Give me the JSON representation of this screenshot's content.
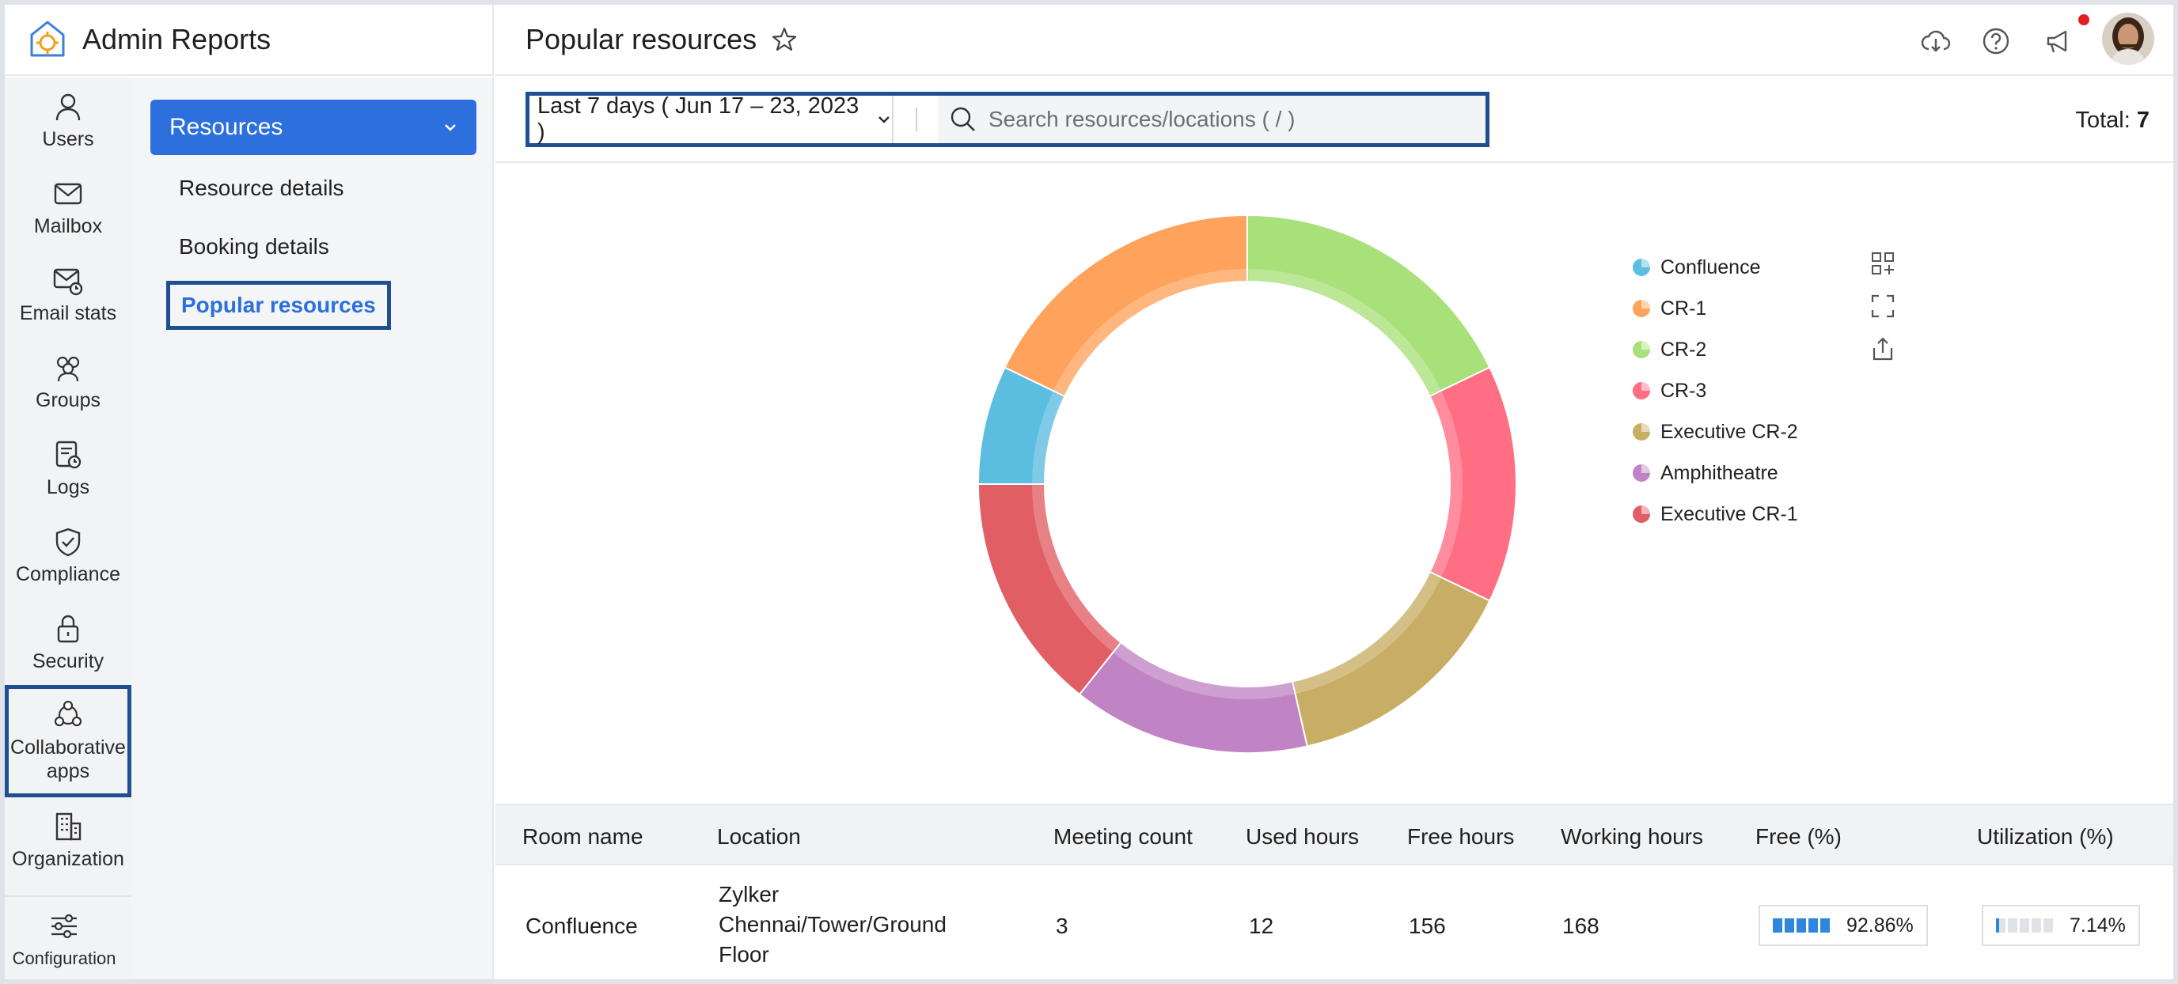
{
  "app": {
    "title": "Admin Reports"
  },
  "rail": {
    "items": [
      {
        "label": "Users",
        "icon": "user-icon"
      },
      {
        "label": "Mailbox",
        "icon": "mailbox-icon"
      },
      {
        "label": "Email stats",
        "icon": "email-stats-icon"
      },
      {
        "label": "Groups",
        "icon": "groups-icon"
      },
      {
        "label": "Logs",
        "icon": "logs-icon"
      },
      {
        "label": "Compliance",
        "icon": "shield-check-icon"
      },
      {
        "label": "Security",
        "icon": "lock-icon"
      },
      {
        "label": "Collaborative apps",
        "icon": "collaborative-apps-icon",
        "selected": true
      },
      {
        "label": "Organization",
        "icon": "building-icon"
      },
      {
        "label": "Configuration",
        "icon": "sliders-icon"
      }
    ]
  },
  "subnav": {
    "group_label": "Resources",
    "items": [
      {
        "label": "Resource details"
      },
      {
        "label": "Booking details"
      },
      {
        "label": "Popular resources",
        "active": true
      }
    ]
  },
  "header": {
    "title": "Popular resources"
  },
  "filter": {
    "date_range": "Last 7 days ( Jun 17 – 23, 2023 )",
    "search_placeholder": "Search resources/locations ( / )",
    "total_label": "Total:",
    "total_value": "7"
  },
  "colors": {
    "accent": "#2d6fdc",
    "focus_border": "#1d4f91",
    "meter_fill": "#2e86de"
  },
  "chart_data": {
    "type": "pie",
    "categories": [
      "Confluence",
      "CR-1",
      "CR-2",
      "CR-3",
      "Executive CR-2",
      "Amphitheatre",
      "Executive CR-1"
    ],
    "values": [
      7.14,
      17.86,
      17.86,
      14.29,
      14.29,
      14.29,
      14.29
    ],
    "colors": [
      "#5bbde0",
      "#ffa35c",
      "#a8e07a",
      "#ff6e82",
      "#c8ae64",
      "#c084c4",
      "#e05e64"
    ],
    "legend_position": "right"
  },
  "table": {
    "columns": [
      "Room name",
      "Location",
      "Meeting count",
      "Used hours",
      "Free hours",
      "Working hours",
      "Free (%)",
      "Utilization (%)"
    ],
    "rows": [
      {
        "room": "Confluence",
        "location_lines": [
          "Zylker",
          "Chennai/Tower/Ground",
          "Floor"
        ],
        "meeting_count": "3",
        "used_hours": "12",
        "free_hours": "156",
        "working_hours": "168",
        "free_pct": "92.86%",
        "free_pct_value": 92.86,
        "utilization_pct": "7.14%",
        "utilization_pct_value": 7.14
      }
    ]
  }
}
